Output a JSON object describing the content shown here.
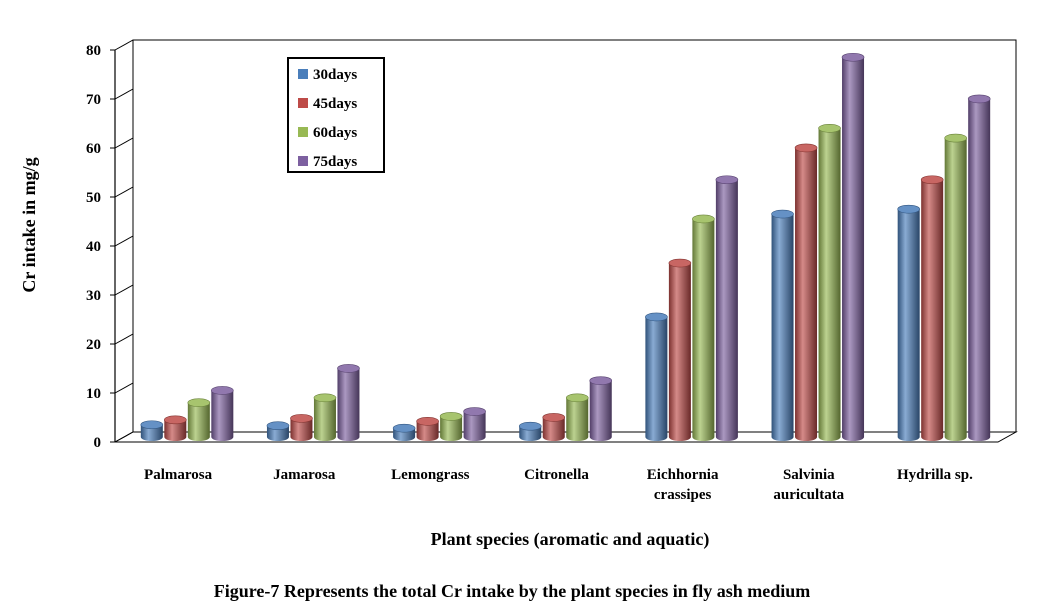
{
  "chart_data": {
    "type": "bar",
    "categories": [
      "Palmarosa",
      "Jamarosa",
      "Lemongrass",
      "Citronella",
      "Eichhornia\ncrassipes",
      "Salvinia\nauricultata",
      "Hydrilla sp."
    ],
    "series": [
      {
        "name": "30days",
        "color": "#4a7ebb",
        "values": [
          2.5,
          2.3,
          1.8,
          2.2,
          24.5,
          45.5,
          46.5
        ]
      },
      {
        "name": "45days",
        "color": "#be4b48",
        "values": [
          3.5,
          3.8,
          3.2,
          4.0,
          35.5,
          59.0,
          52.5
        ]
      },
      {
        "name": "60days",
        "color": "#98b954",
        "values": [
          7.0,
          8.0,
          4.2,
          8.0,
          44.5,
          63.0,
          61.0
        ]
      },
      {
        "name": "75days",
        "color": "#7d60a0",
        "values": [
          9.5,
          14.0,
          5.2,
          11.5,
          52.5,
          77.5,
          69.0
        ]
      }
    ],
    "xlabel": "Plant species (aromatic and aquatic)",
    "ylabel": "Cr intake in mg/g",
    "ylim": [
      0,
      80
    ],
    "yticks": [
      "0",
      "10",
      "20",
      "30",
      "40",
      "50",
      "60",
      "70",
      "80"
    ],
    "legend_position": "top-left",
    "grid": false
  },
  "caption": "Figure-7 Represents the total Cr intake by the plant species in fly ash medium"
}
